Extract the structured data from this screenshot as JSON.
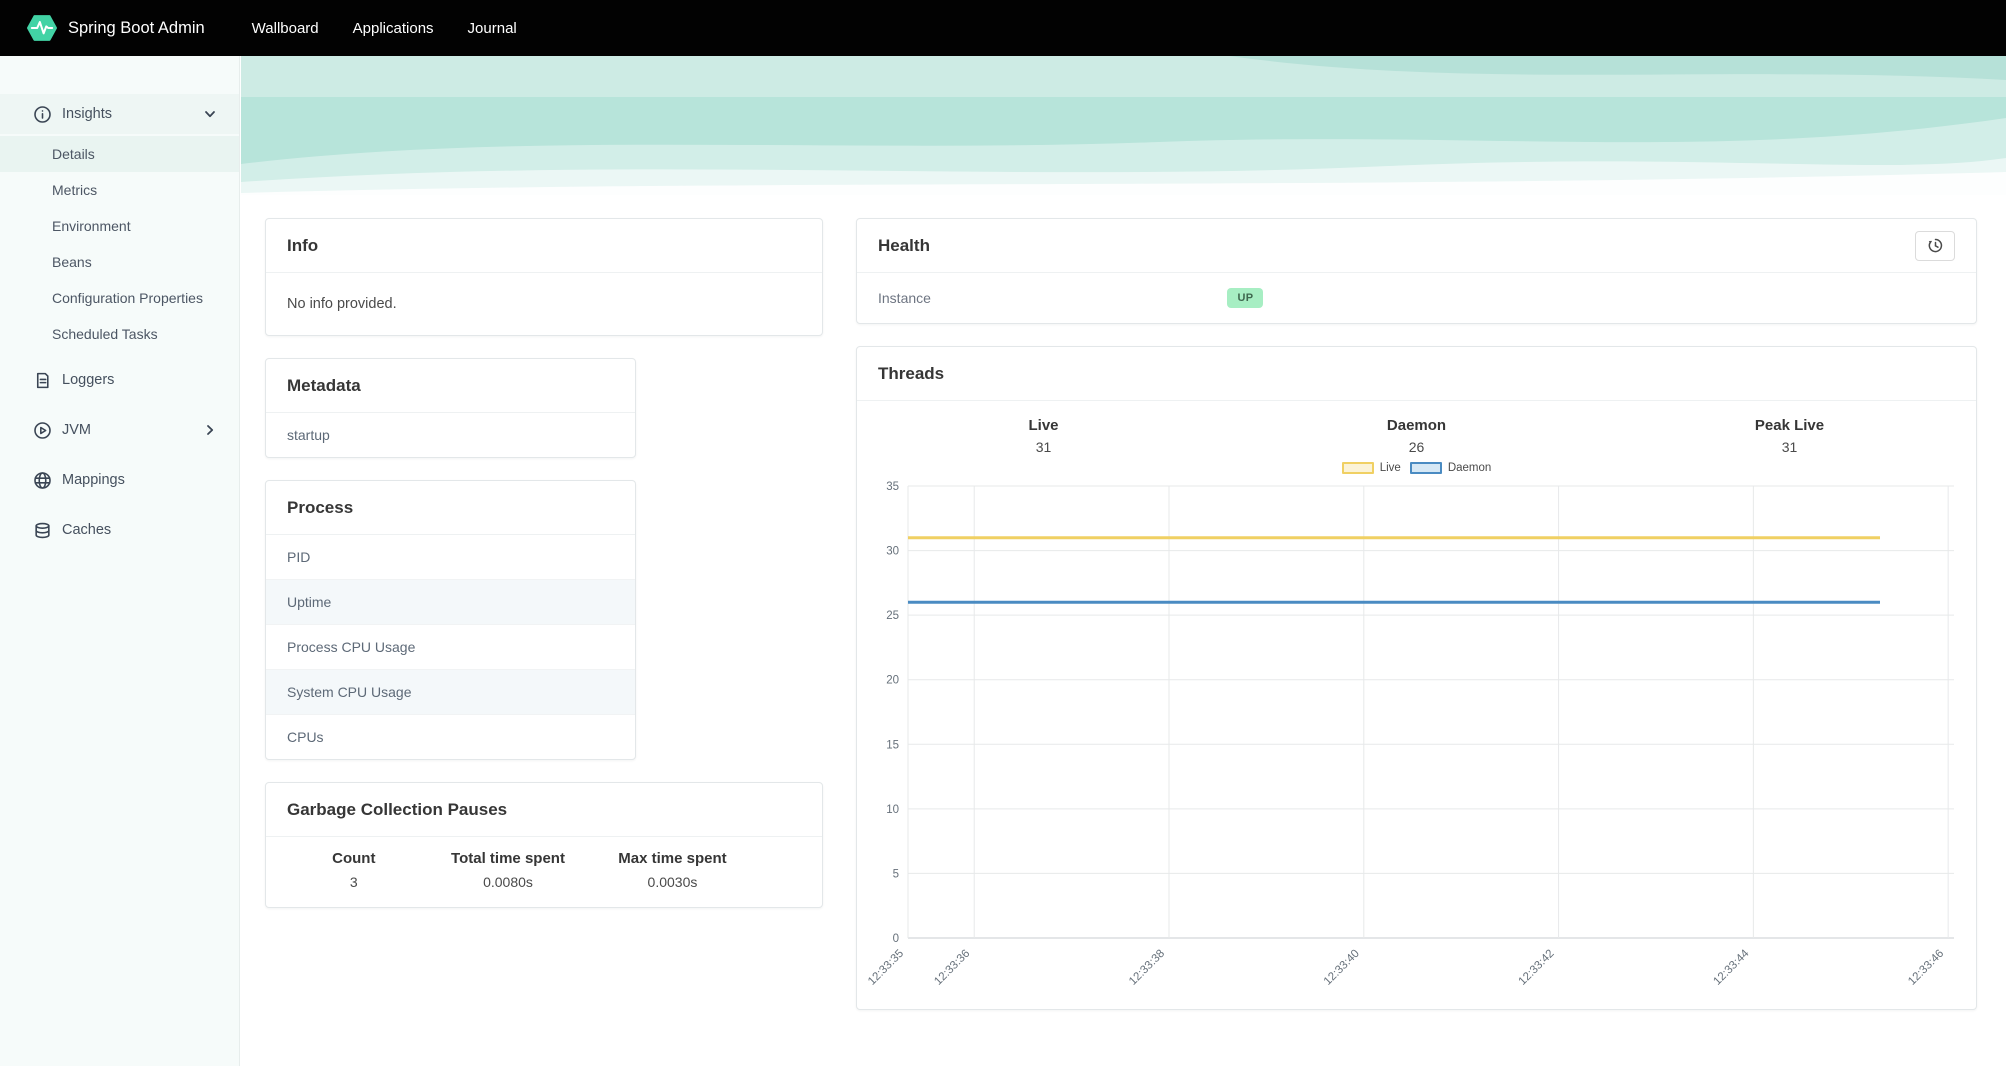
{
  "navbar": {
    "brand": "Spring Boot Admin",
    "brand_color": "#42d3a5",
    "items": [
      {
        "label": "Wallboard"
      },
      {
        "label": "Applications"
      },
      {
        "label": "Journal"
      }
    ]
  },
  "sidebar": {
    "sections": [
      {
        "label": "Insights",
        "icon": "info-circle-icon",
        "expanded": true,
        "children": [
          "Details",
          "Metrics",
          "Environment",
          "Beans",
          "Configuration Properties",
          "Scheduled Tasks"
        ],
        "active_child": "Details"
      },
      {
        "label": "Loggers",
        "icon": "document-lines-icon"
      },
      {
        "label": "JVM",
        "icon": "play-circle-icon",
        "collapsed": true
      },
      {
        "label": "Mappings",
        "icon": "globe-icon"
      },
      {
        "label": "Caches",
        "icon": "database-icon"
      }
    ]
  },
  "panels": {
    "info": {
      "title": "Info",
      "body": "No info provided."
    },
    "metadata": {
      "title": "Metadata",
      "rows": [
        "startup"
      ]
    },
    "process": {
      "title": "Process",
      "rows": [
        "PID",
        "Uptime",
        "Process CPU Usage",
        "System CPU Usage",
        "CPUs"
      ]
    },
    "gc": {
      "title": "Garbage Collection Pauses",
      "columns": [
        "Count",
        "Total time spent",
        "Max time spent"
      ],
      "values": [
        "3",
        "0.0080s",
        "0.0030s"
      ]
    },
    "health": {
      "title": "Health",
      "rows": [
        {
          "label": "Instance",
          "status": "UP"
        }
      ],
      "badge_bg": "#a7eec3",
      "badge_color": "#3f684f"
    },
    "threads": {
      "title": "Threads",
      "stats": [
        {
          "label": "Live",
          "value": "31"
        },
        {
          "label": "Daemon",
          "value": "26"
        },
        {
          "label": "Peak Live",
          "value": "31"
        }
      ]
    }
  },
  "chart_data": {
    "type": "line",
    "title": "",
    "xlabel": "",
    "ylabel": "",
    "ylim": [
      0,
      35
    ],
    "y_ticks": [
      0,
      5,
      10,
      15,
      20,
      25,
      30,
      35
    ],
    "x_domain_s": [
      35.32,
      46.06
    ],
    "x_ticks": [
      {
        "s": 35,
        "label": "12:33:35"
      },
      {
        "s": 36,
        "label": "12:33:36"
      },
      {
        "s": 38,
        "label": "12:33:38"
      },
      {
        "s": 40,
        "label": "12:33:40"
      },
      {
        "s": 42,
        "label": "12:33:42"
      },
      {
        "s": 44,
        "label": "12:33:44"
      },
      {
        "s": 46,
        "label": "12:33:46"
      }
    ],
    "grid": true,
    "legend_position": "top-center",
    "series": [
      {
        "name": "Live",
        "color": "#f0d063",
        "fill": "#fbf3d7",
        "points": [
          [
            35.32,
            31
          ],
          [
            45.3,
            31
          ]
        ]
      },
      {
        "name": "Daemon",
        "color": "#4a8bc2",
        "fill": "#d6e8f5",
        "points": [
          [
            35.32,
            26
          ],
          [
            45.3,
            26
          ]
        ]
      }
    ]
  }
}
